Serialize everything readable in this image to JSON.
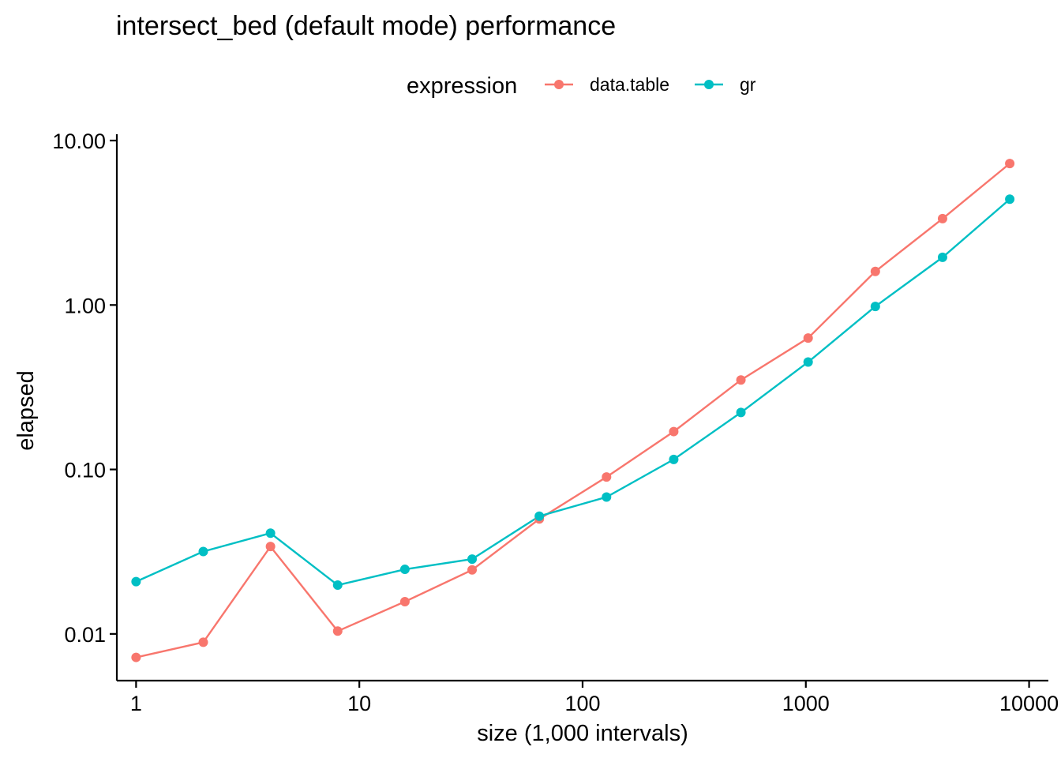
{
  "chart_data": {
    "type": "line",
    "title": "intersect_bed (default mode) performance",
    "xlabel": "size (1,000 intervals)",
    "ylabel": "elapsed",
    "x_scale": "log10",
    "y_scale": "log10",
    "xlim": [
      0.82,
      12200
    ],
    "ylim": [
      0.0052,
      10.0
    ],
    "x_ticks": [
      1,
      10,
      100,
      1000,
      10000
    ],
    "x_tick_labels": [
      "1",
      "10",
      "100",
      "1000",
      "10000"
    ],
    "y_ticks": [
      0.01,
      0.1,
      1,
      10
    ],
    "y_tick_labels": [
      "0.01",
      "0.10",
      "1.00",
      "10.00"
    ],
    "legend": {
      "title": "expression",
      "position": "top"
    },
    "grid": false,
    "x": [
      1,
      2,
      4,
      8,
      16,
      32,
      64,
      128,
      256,
      512,
      1024,
      2048,
      4096,
      8192
    ],
    "series": [
      {
        "name": "data.table",
        "color": "#F8766D",
        "values": [
          0.0072,
          0.0089,
          0.034,
          0.0104,
          0.0157,
          0.0245,
          0.05,
          0.09,
          0.17,
          0.35,
          0.63,
          1.6,
          3.35,
          7.25
        ]
      },
      {
        "name": "gr",
        "color": "#00BFC4",
        "values": [
          0.0208,
          0.0317,
          0.041,
          0.0198,
          0.0247,
          0.0285,
          0.052,
          0.068,
          0.115,
          0.222,
          0.45,
          0.98,
          1.95,
          4.4
        ]
      }
    ]
  }
}
